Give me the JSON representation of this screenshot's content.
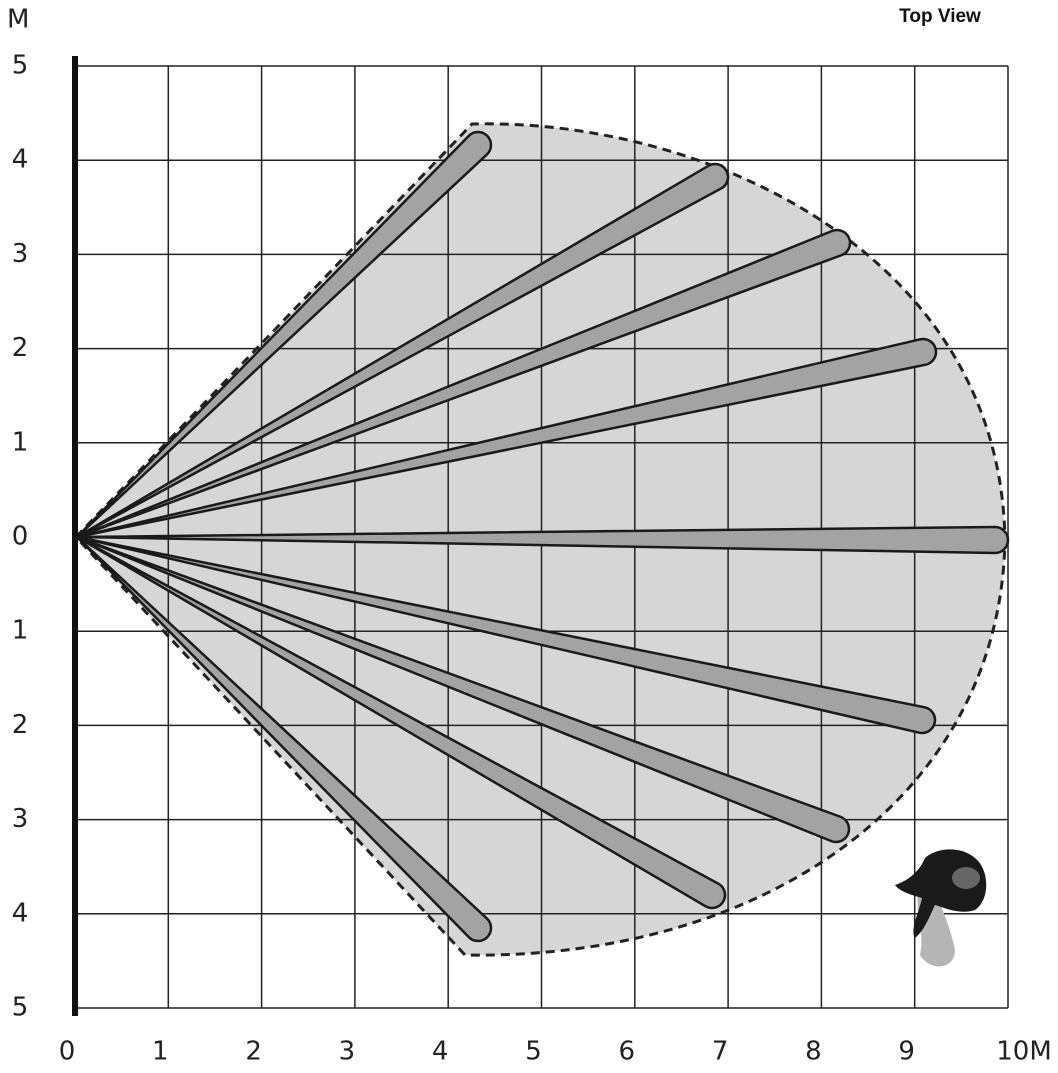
{
  "header": {
    "title": "Top View",
    "y_unit": "M"
  },
  "axes": {
    "y_labels": [
      "5",
      "4",
      "3",
      "2",
      "1",
      "0",
      "1",
      "2",
      "3",
      "4",
      "5"
    ],
    "x_labels": [
      "0",
      "1",
      "2",
      "3",
      "4",
      "5",
      "6",
      "7",
      "8",
      "9",
      "10M"
    ]
  }
}
